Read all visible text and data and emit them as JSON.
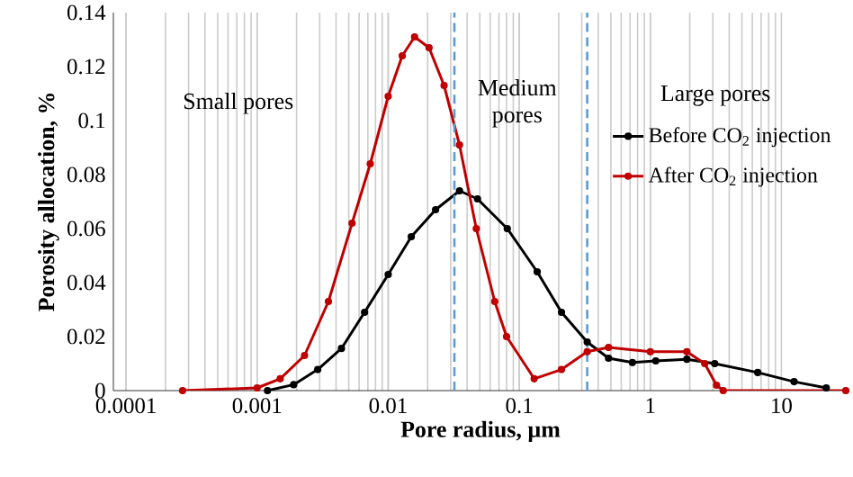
{
  "chart_data": {
    "type": "line",
    "xlabel": "Pore radius, µm",
    "ylabel": "Porosity allocation, %",
    "log": "x",
    "xlim": [
      8e-05,
      32
    ],
    "ylim": [
      0,
      0.14
    ],
    "xticks": [
      0.0001,
      0.001,
      0.01,
      0.1,
      1,
      10
    ],
    "yticks": [
      0,
      0.02,
      0.04,
      0.06,
      0.08,
      0.1,
      0.12,
      0.14
    ],
    "grid": "x",
    "legend": "right",
    "marker": "circle",
    "line_style": "solid",
    "ref_lines": [
      {
        "axis": "x",
        "value": 0.032,
        "color": "#5b9bd5",
        "line_style": "dashed"
      },
      {
        "axis": "x",
        "value": 0.33,
        "color": "#5b9bd5",
        "line_style": "dashed"
      }
    ],
    "annotations": [
      "Small pores",
      "Medium pores",
      "Large pores"
    ],
    "series": [
      {
        "name": "Before CO$_{2}$ injection",
        "color": "#000000",
        "x": [
          0.0012,
          0.0019,
          0.0029,
          0.0044,
          0.0066,
          0.01,
          0.015,
          0.023,
          0.035,
          0.048,
          0.081,
          0.137,
          0.21,
          0.33,
          0.48,
          0.73,
          1.1,
          1.9,
          3.1,
          6.6,
          12.5,
          22
        ],
        "values": [
          0,
          0.0022,
          0.0078,
          0.0156,
          0.029,
          0.043,
          0.057,
          0.067,
          0.074,
          0.071,
          0.06,
          0.044,
          0.029,
          0.018,
          0.012,
          0.0104,
          0.011,
          0.0116,
          0.01,
          0.0067,
          0.0033,
          0.001
        ]
      },
      {
        "name": "After CO$_{2}$ injection",
        "color": "#c00000",
        "x": [
          0.00027,
          0.001,
          0.0015,
          0.0023,
          0.0035,
          0.0053,
          0.0073,
          0.01,
          0.0128,
          0.0159,
          0.0205,
          0.0267,
          0.035,
          0.047,
          0.065,
          0.08,
          0.13,
          0.21,
          0.33,
          0.48,
          1,
          1.9,
          2.6,
          3.2,
          3.6,
          31
        ],
        "values": [
          0,
          0.001,
          0.0044,
          0.013,
          0.033,
          0.062,
          0.084,
          0.109,
          0.124,
          0.131,
          0.127,
          0.113,
          0.091,
          0.06,
          0.033,
          0.02,
          0.0044,
          0.0078,
          0.0144,
          0.016,
          0.0144,
          0.0144,
          0.01,
          0.002,
          0,
          0
        ]
      }
    ]
  }
}
